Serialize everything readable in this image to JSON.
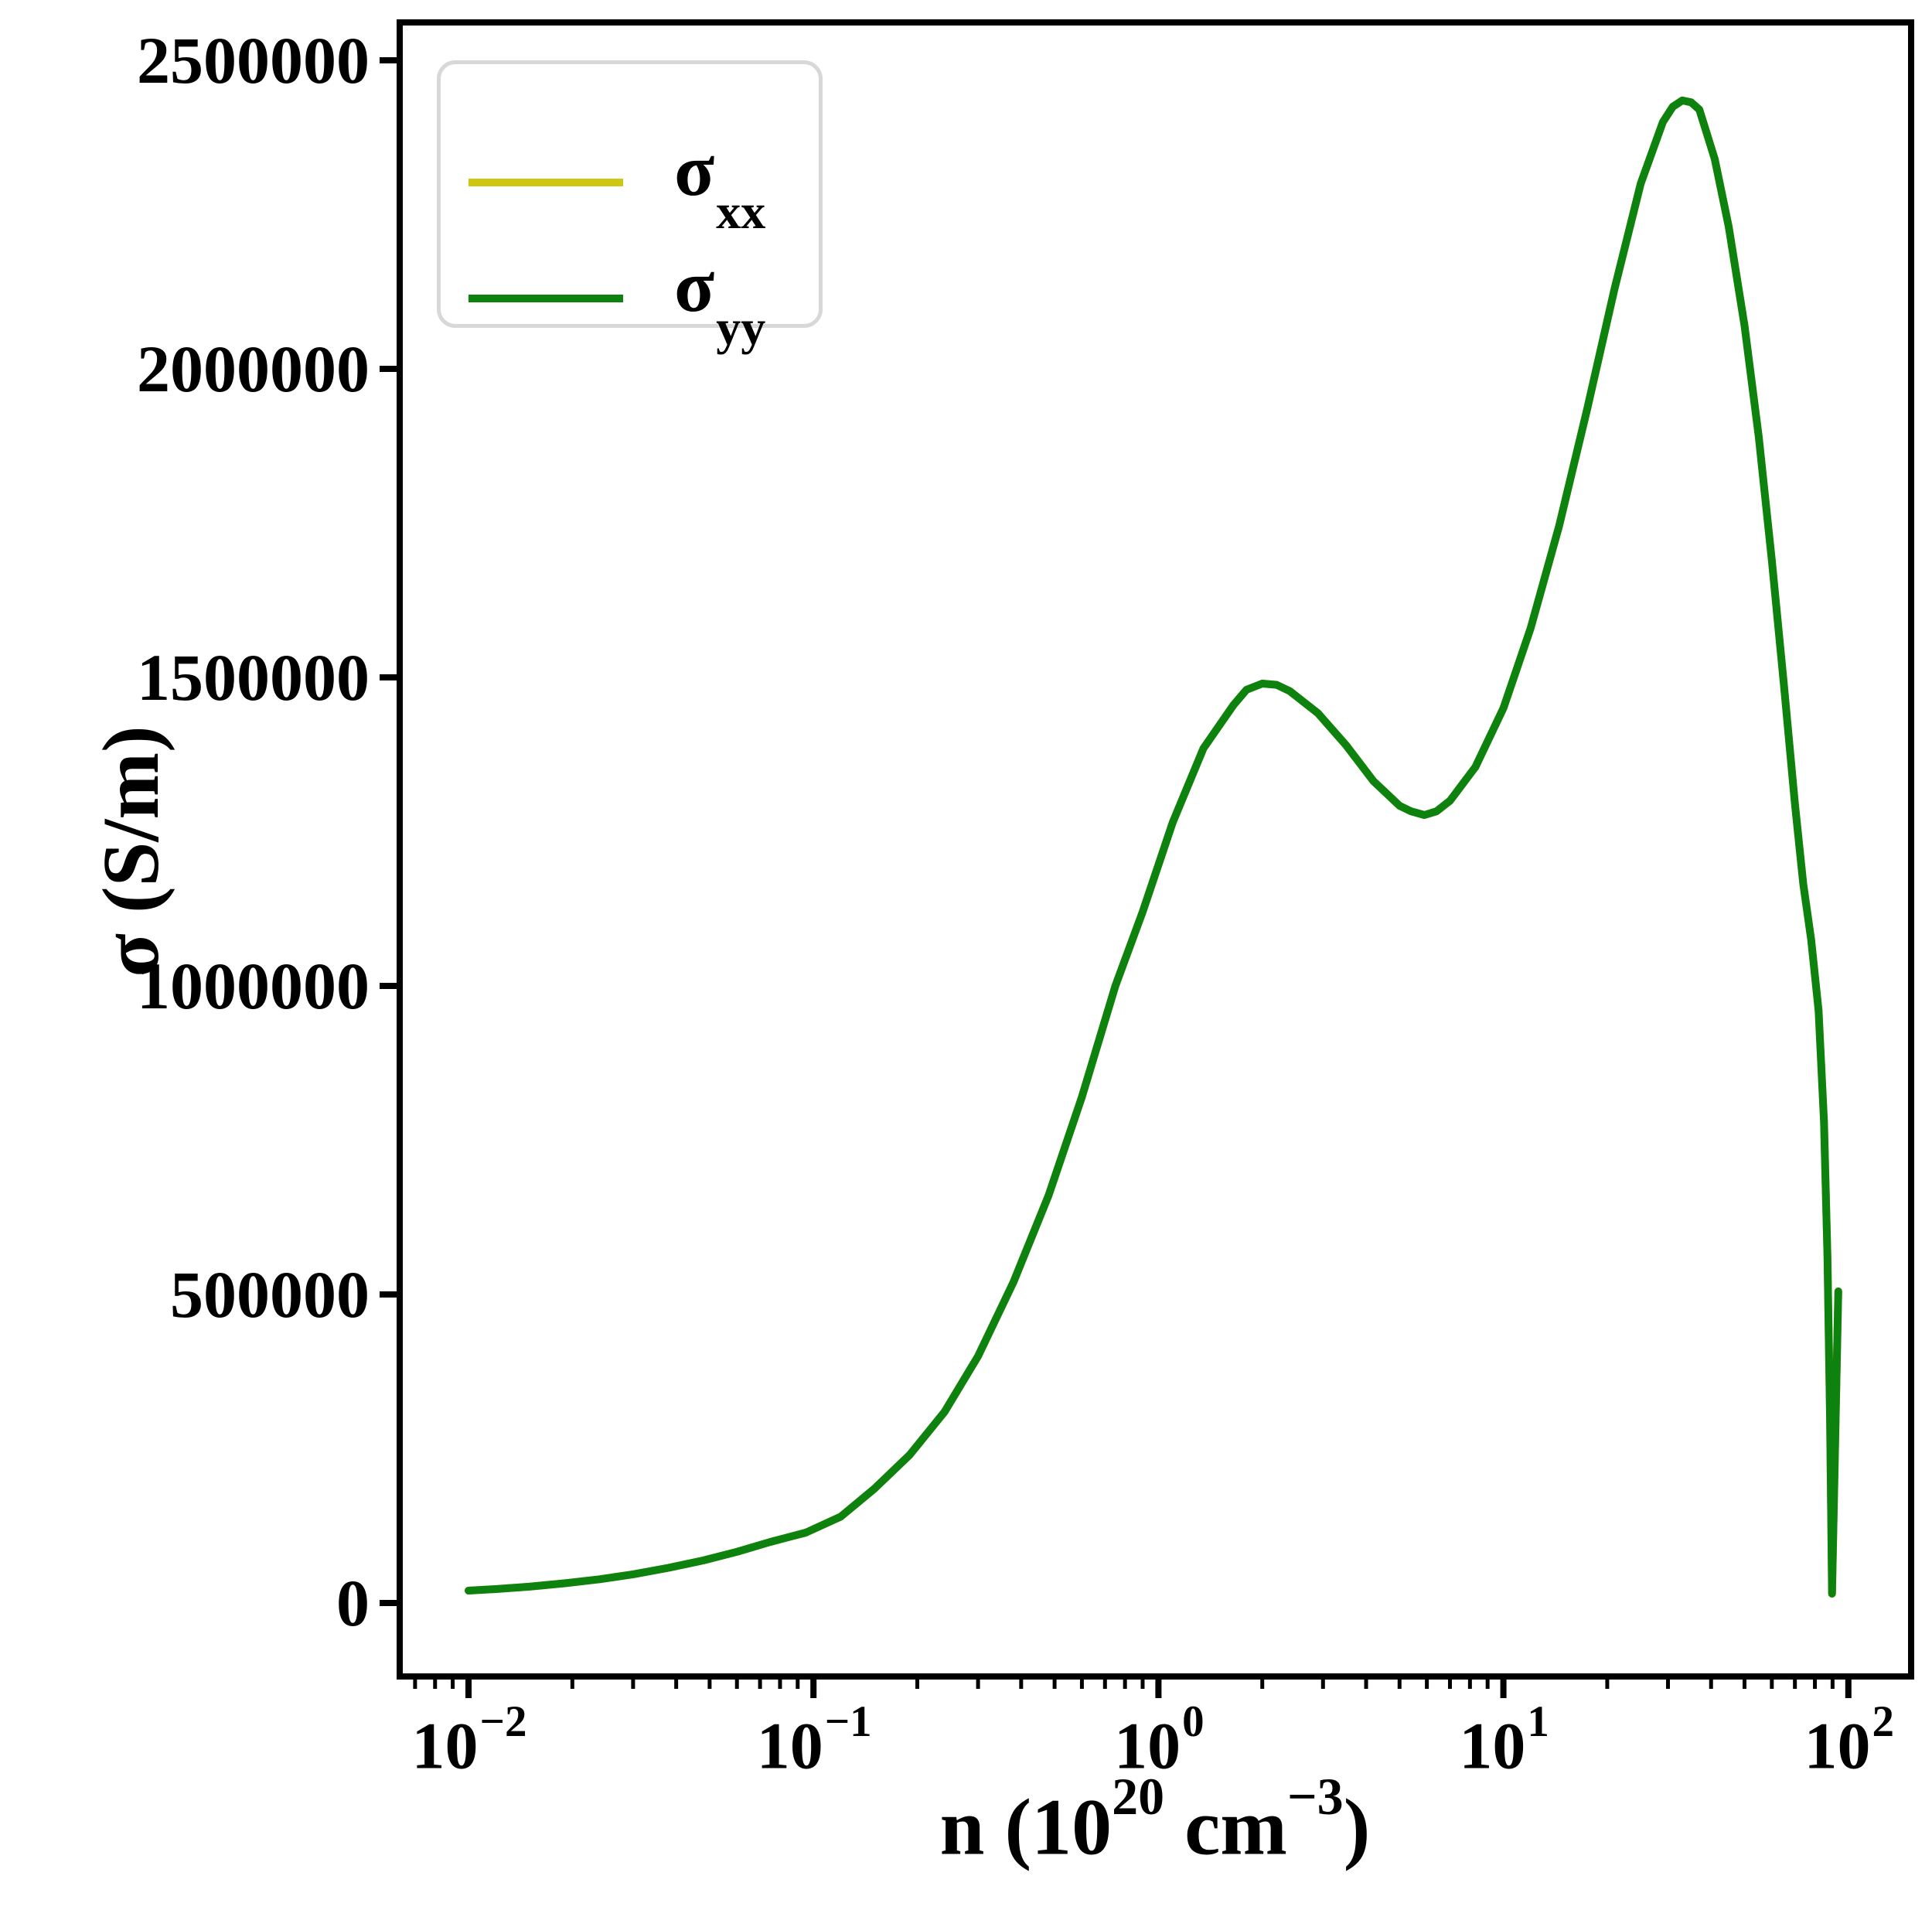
{
  "figure": {
    "background": "#ffffff",
    "ylabel": "σ (S/m)",
    "xlabel_parts": [
      {
        "text": "n (10"
      },
      {
        "sup": "20"
      },
      {
        "text": " cm"
      },
      {
        "sup": "−3"
      },
      {
        "text": ")"
      }
    ]
  },
  "chart_data": {
    "type": "line",
    "title": "",
    "xlabel": "n (10^20 cm^-3)",
    "ylabel": "σ (S/m)",
    "xscale": "log",
    "yscale": "linear",
    "grid": false,
    "xlim": [
      0.0063,
      152
    ],
    "ylim": [
      -119000,
      2561000
    ],
    "x_ticks": [
      {
        "value": 0.01,
        "base": "10",
        "exp": "−2"
      },
      {
        "value": 0.1,
        "base": "10",
        "exp": "−1"
      },
      {
        "value": 1,
        "base": "10",
        "exp": "0"
      },
      {
        "value": 10,
        "base": "10",
        "exp": "1"
      },
      {
        "value": 100,
        "base": "10",
        "exp": "2"
      }
    ],
    "y_ticks": [
      {
        "value": 0,
        "label": "0"
      },
      {
        "value": 500000,
        "label": "500000"
      },
      {
        "value": 1000000,
        "label": "1000000"
      },
      {
        "value": 1500000,
        "label": "1500000"
      },
      {
        "value": 2000000,
        "label": "2000000"
      },
      {
        "value": 2500000,
        "label": "2500000"
      }
    ],
    "legend": {
      "position": "upper left",
      "entries": [
        {
          "symbol": "σ",
          "subscript": "xx",
          "color": "#cdc713"
        },
        {
          "symbol": "σ",
          "subscript": "yy",
          "color": "#0e820e"
        }
      ]
    },
    "series": [
      {
        "name": "sigma_xx",
        "color": "#cdc713",
        "points": [
          [
            0.01,
            20000
          ],
          [
            0.012,
            22500
          ],
          [
            0.015,
            26500
          ],
          [
            0.019,
            32000
          ],
          [
            0.024,
            38500
          ],
          [
            0.03,
            46500
          ],
          [
            0.038,
            57000
          ],
          [
            0.048,
            69000
          ],
          [
            0.06,
            83000
          ],
          [
            0.075,
            99000
          ],
          [
            0.095,
            114000
          ],
          [
            0.12,
            140000
          ],
          [
            0.15,
            185000
          ],
          [
            0.19,
            240000
          ],
          [
            0.24,
            310000
          ],
          [
            0.3,
            400000
          ],
          [
            0.38,
            520000
          ],
          [
            0.48,
            660000
          ],
          [
            0.6,
            820000
          ],
          [
            0.75,
            1000000
          ],
          [
            0.9,
            1120000
          ],
          [
            1.1,
            1265000
          ],
          [
            1.35,
            1385000
          ],
          [
            1.65,
            1455000
          ],
          [
            1.8,
            1480000
          ],
          [
            2.0,
            1490000
          ],
          [
            2.2,
            1488000
          ],
          [
            2.4,
            1478000
          ],
          [
            2.9,
            1442000
          ],
          [
            3.5,
            1390000
          ],
          [
            4.2,
            1332000
          ],
          [
            5.0,
            1292000
          ],
          [
            5.4,
            1283000
          ],
          [
            5.9,
            1277000
          ],
          [
            6.4,
            1283000
          ],
          [
            7.0,
            1300000
          ],
          [
            8.3,
            1355000
          ],
          [
            10,
            1450000
          ],
          [
            12,
            1580000
          ],
          [
            14.5,
            1745000
          ],
          [
            17.5,
            1935000
          ],
          [
            21,
            2130000
          ],
          [
            25,
            2300000
          ],
          [
            29,
            2400000
          ],
          [
            31,
            2425000
          ],
          [
            33,
            2435000
          ],
          [
            35,
            2432000
          ],
          [
            37,
            2420000
          ],
          [
            41,
            2340000
          ],
          [
            45,
            2230000
          ],
          [
            50,
            2070000
          ],
          [
            55,
            1890000
          ],
          [
            60,
            1690000
          ],
          [
            65,
            1490000
          ],
          [
            70,
            1295000
          ],
          [
            74,
            1165000
          ],
          [
            78,
            1075000
          ],
          [
            82,
            960000
          ],
          [
            85,
            780000
          ],
          [
            87,
            560000
          ],
          [
            88.5,
            300000
          ],
          [
            89.7,
            15000
          ],
          [
            93.5,
            505000
          ]
        ]
      },
      {
        "name": "sigma_yy",
        "color": "#0e820e",
        "points": [
          [
            0.01,
            20000
          ],
          [
            0.012,
            22500
          ],
          [
            0.015,
            26500
          ],
          [
            0.019,
            32000
          ],
          [
            0.024,
            38500
          ],
          [
            0.03,
            46500
          ],
          [
            0.038,
            57000
          ],
          [
            0.048,
            69000
          ],
          [
            0.06,
            83000
          ],
          [
            0.075,
            99000
          ],
          [
            0.095,
            114000
          ],
          [
            0.12,
            140000
          ],
          [
            0.15,
            185000
          ],
          [
            0.19,
            240000
          ],
          [
            0.24,
            310000
          ],
          [
            0.3,
            400000
          ],
          [
            0.38,
            520000
          ],
          [
            0.48,
            660000
          ],
          [
            0.6,
            820000
          ],
          [
            0.75,
            1000000
          ],
          [
            0.9,
            1120000
          ],
          [
            1.1,
            1265000
          ],
          [
            1.35,
            1385000
          ],
          [
            1.65,
            1455000
          ],
          [
            1.8,
            1480000
          ],
          [
            2.0,
            1490000
          ],
          [
            2.2,
            1488000
          ],
          [
            2.4,
            1478000
          ],
          [
            2.9,
            1442000
          ],
          [
            3.5,
            1390000
          ],
          [
            4.2,
            1332000
          ],
          [
            5.0,
            1292000
          ],
          [
            5.4,
            1283000
          ],
          [
            5.9,
            1277000
          ],
          [
            6.4,
            1283000
          ],
          [
            7.0,
            1300000
          ],
          [
            8.3,
            1355000
          ],
          [
            10,
            1450000
          ],
          [
            12,
            1580000
          ],
          [
            14.5,
            1745000
          ],
          [
            17.5,
            1935000
          ],
          [
            21,
            2130000
          ],
          [
            25,
            2300000
          ],
          [
            29,
            2400000
          ],
          [
            31,
            2425000
          ],
          [
            33,
            2435000
          ],
          [
            35,
            2432000
          ],
          [
            37,
            2420000
          ],
          [
            41,
            2340000
          ],
          [
            45,
            2230000
          ],
          [
            50,
            2070000
          ],
          [
            55,
            1890000
          ],
          [
            60,
            1690000
          ],
          [
            65,
            1490000
          ],
          [
            70,
            1295000
          ],
          [
            74,
            1165000
          ],
          [
            78,
            1075000
          ],
          [
            82,
            960000
          ],
          [
            85,
            780000
          ],
          [
            87,
            560000
          ],
          [
            88.5,
            300000
          ],
          [
            89.7,
            15000
          ],
          [
            93.5,
            505000
          ]
        ]
      }
    ]
  }
}
